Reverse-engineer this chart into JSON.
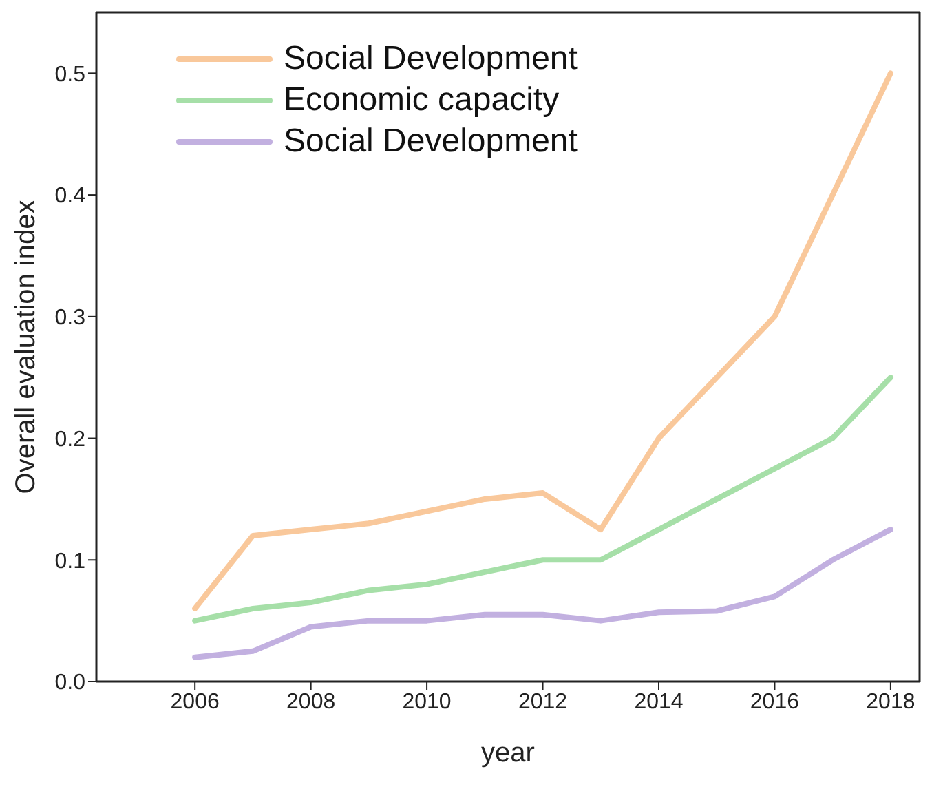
{
  "chart_data": {
    "type": "line",
    "xlabel": "year",
    "ylabel": "Overall evaluation index",
    "x": [
      2006,
      2007,
      2008,
      2009,
      2010,
      2011,
      2012,
      2013,
      2014,
      2015,
      2016,
      2017,
      2018
    ],
    "series": [
      {
        "name": "Social Development",
        "color": "#f9c89b",
        "values": [
          0.06,
          0.12,
          0.125,
          0.13,
          0.14,
          0.15,
          0.155,
          0.125,
          0.2,
          0.25,
          0.3,
          0.4,
          0.5
        ]
      },
      {
        "name": "Economic capacity",
        "color": "#a6dfa8",
        "values": [
          0.05,
          0.06,
          0.065,
          0.075,
          0.08,
          0.09,
          0.1,
          0.1,
          0.125,
          0.15,
          0.175,
          0.2,
          0.25
        ]
      },
      {
        "name": "Social Development",
        "color": "#c2b0e0",
        "values": [
          0.02,
          0.025,
          0.045,
          0.05,
          0.05,
          0.055,
          0.055,
          0.05,
          0.057,
          0.058,
          0.07,
          0.1,
          0.125
        ]
      }
    ],
    "xlim": [
      2004.3,
      2018.5
    ],
    "ylim": [
      0,
      0.55
    ],
    "xticks": [
      2006,
      2008,
      2010,
      2012,
      2014,
      2016,
      2018
    ],
    "yticks": [
      {
        "value": 0,
        "label": "0.0"
      },
      0.1,
      0.2,
      0.3,
      0.4,
      0.5
    ],
    "legend": "top left",
    "grid": false,
    "marker": "none",
    "line_style": "solid"
  }
}
